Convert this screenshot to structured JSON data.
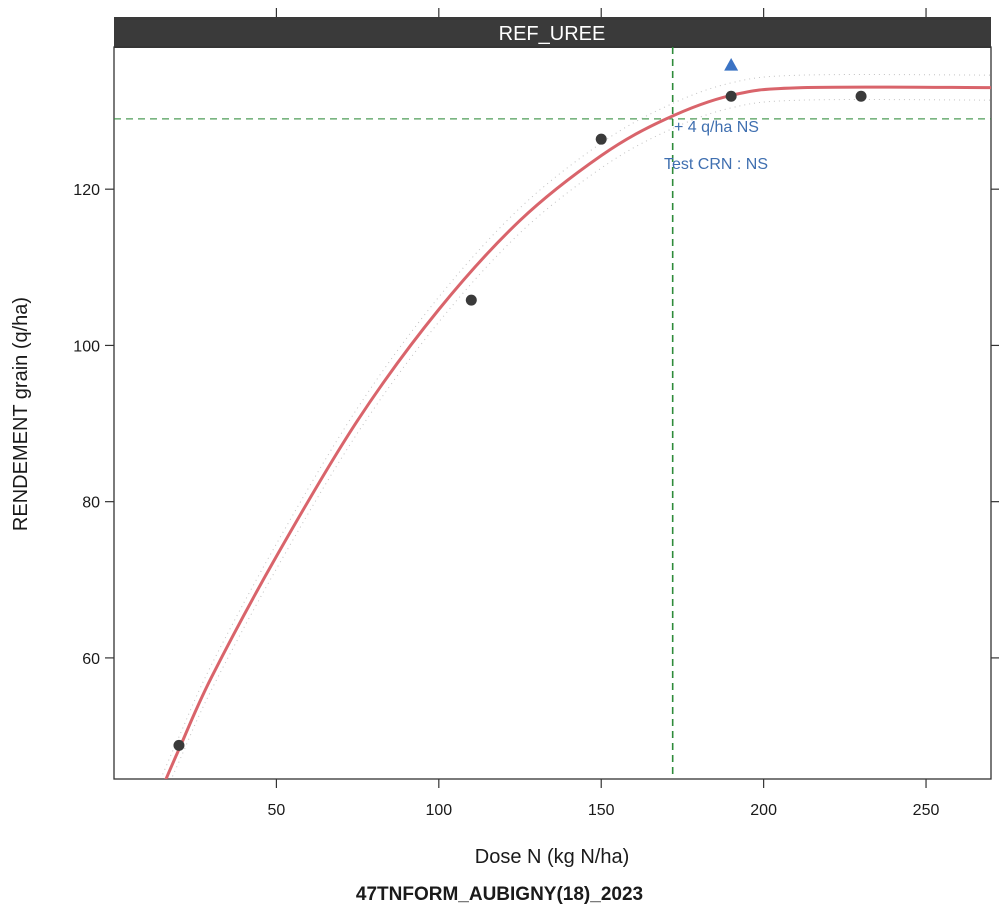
{
  "chart_data": {
    "type": "scatter",
    "panel_title": "REF_UREE",
    "footer_title": "47TNFORM_AUBIGNY(18)_2023",
    "xlabel": "Dose N (kg N/ha)",
    "ylabel": "RENDEMENT grain (q/ha)",
    "xlim": [
      0,
      270
    ],
    "ylim": [
      44.5,
      138.2
    ],
    "x_ticks": [
      50,
      100,
      150,
      200,
      250
    ],
    "y_ticks": [
      60,
      80,
      100,
      120
    ],
    "grid": false,
    "points": [
      {
        "x": 20,
        "y": 48.8
      },
      {
        "x": 110,
        "y": 105.8
      },
      {
        "x": 150,
        "y": 126.4
      },
      {
        "x": 190,
        "y": 131.9
      },
      {
        "x": 230,
        "y": 131.9
      }
    ],
    "reference_points": [
      {
        "x": 190,
        "y": 135.9
      }
    ],
    "fitted_curve": {
      "type": "quadratic-plateau",
      "points": [
        [
          15,
          43.5
        ],
        [
          20,
          48.3
        ],
        [
          30,
          57.5
        ],
        [
          50,
          73.0
        ],
        [
          75,
          90.4
        ],
        [
          100,
          104.6
        ],
        [
          125,
          116.0
        ],
        [
          150,
          124.3
        ],
        [
          170,
          129.0
        ],
        [
          190,
          132.0
        ],
        [
          212,
          133.0
        ],
        [
          270,
          133.0
        ]
      ]
    },
    "optimum": {
      "x": 172,
      "y": 129.0
    },
    "annotations": [
      "+ 4 q/ha NS",
      "Test CRN : NS"
    ],
    "colors": {
      "curve": "#d9646b",
      "points": "#3a3a3a",
      "reference_point": "#3b73c4",
      "guide_lines": "#2e8b3a",
      "annotation_text": "#3f6fb0",
      "strip": "#3a3a3a",
      "strip_text": "#ffffff"
    }
  }
}
